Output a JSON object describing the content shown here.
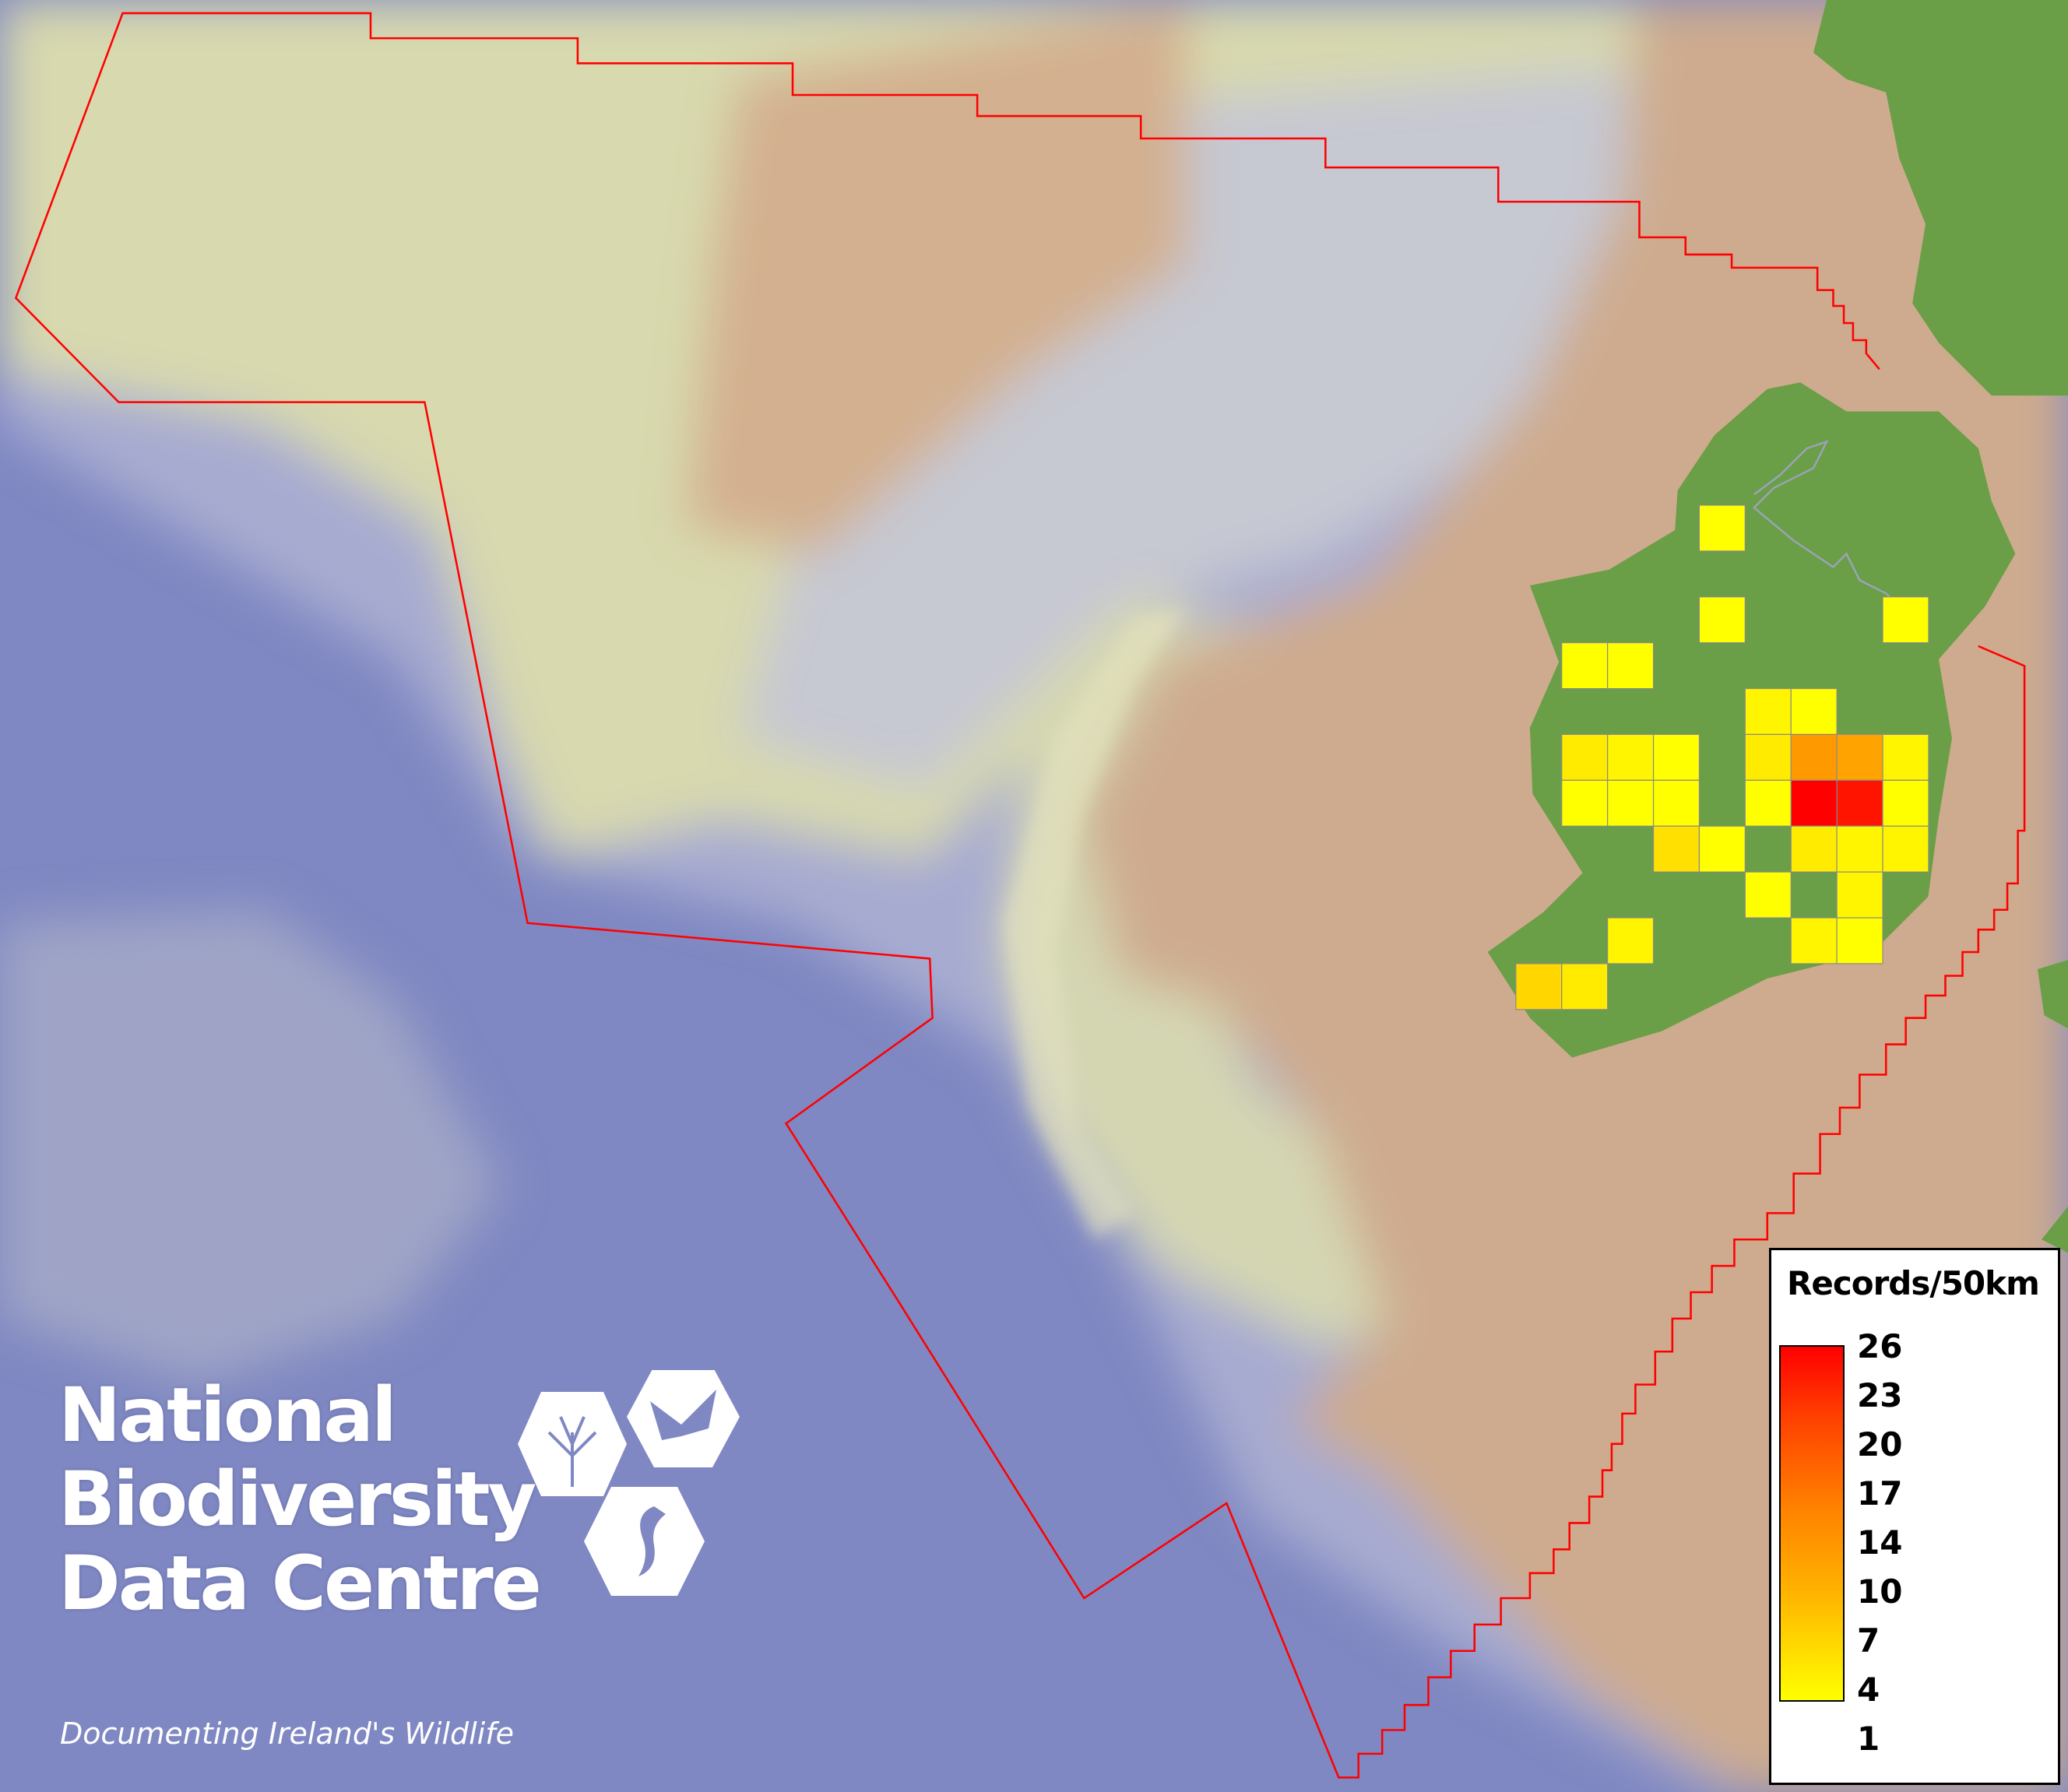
{
  "legend": {
    "title": "Records/50km",
    "ticks": [
      "26",
      "23",
      "20",
      "17",
      "14",
      "10",
      "7",
      "4",
      "1"
    ],
    "min": 1,
    "max": 26,
    "color_low": "#ffff00",
    "color_high": "#ff0000"
  },
  "logo": {
    "line1": "National",
    "line2": "Biodiversity",
    "line3": "Data Centre",
    "tagline": "Documenting Ireland's Wildlife",
    "icons": [
      "tree-icon",
      "butterfly-icon",
      "seahorse-icon"
    ]
  },
  "map": {
    "boundary_color": "#ff0000",
    "land_color": "#6a9e47",
    "deep_sea_color": "#7f88c2",
    "shelf_color": "#ceab8e",
    "record_values": [
      1,
      1,
      1,
      1,
      1,
      2,
      1,
      3,
      2,
      1,
      3,
      11,
      10,
      2,
      1,
      1,
      1,
      1,
      26,
      24,
      1,
      4,
      1,
      3,
      2,
      2,
      1,
      2,
      2,
      2,
      1,
      5,
      3
    ]
  }
}
